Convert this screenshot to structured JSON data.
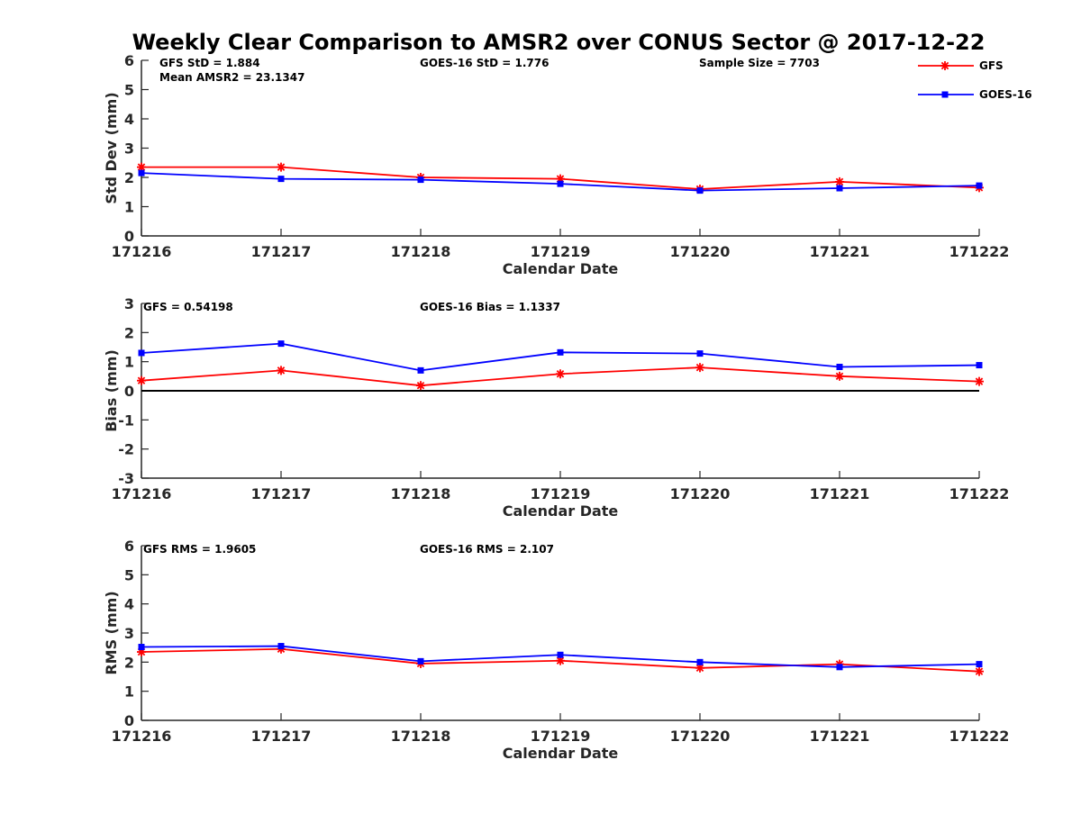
{
  "title": "Weekly Clear Comparison to AMSR2 over CONUS Sector @ 2017-12-22",
  "colors": {
    "gfs": "#ff0000",
    "goes": "#0000ff",
    "axis": "#262626",
    "zero_line": "#000000"
  },
  "legend": {
    "placement": "top-right",
    "items": [
      {
        "name": "GFS",
        "color": "#ff0000",
        "marker": "asterisk"
      },
      {
        "name": "GOES-16",
        "color": "#0000ff",
        "marker": "square"
      }
    ]
  },
  "chart_data": [
    {
      "type": "line",
      "xlabel": "Calendar Date",
      "ylabel": "Std Dev (mm)",
      "ylim": [
        0,
        6
      ],
      "yticks": [
        "0",
        "1",
        "2",
        "3",
        "4",
        "5",
        "6"
      ],
      "categories": [
        "171216",
        "171217",
        "171218",
        "171219",
        "171220",
        "171221",
        "171222"
      ],
      "series": [
        {
          "name": "GFS",
          "values": [
            2.35,
            2.35,
            2.0,
            1.95,
            1.6,
            1.85,
            1.65
          ]
        },
        {
          "name": "GOES-16",
          "values": [
            2.15,
            1.95,
            1.92,
            1.78,
            1.55,
            1.63,
            1.72
          ]
        }
      ],
      "annotations": [
        "GFS StD = 1.884",
        "Mean AMSR2 = 23.1347",
        "GOES-16 StD = 1.776",
        "Sample Size = 7703"
      ]
    },
    {
      "type": "line",
      "xlabel": "Calendar Date",
      "ylabel": "Bias (mm)",
      "ylim": [
        -3,
        3
      ],
      "yticks": [
        "-3",
        "-2",
        "-1",
        "0",
        "1",
        "2",
        "3"
      ],
      "zero_line": true,
      "categories": [
        "171216",
        "171217",
        "171218",
        "171219",
        "171220",
        "171221",
        "171222"
      ],
      "series": [
        {
          "name": "GFS",
          "values": [
            0.35,
            0.7,
            0.18,
            0.58,
            0.8,
            0.5,
            0.32
          ]
        },
        {
          "name": "GOES-16",
          "values": [
            1.3,
            1.62,
            0.7,
            1.32,
            1.28,
            0.82,
            0.88
          ]
        }
      ],
      "annotations": [
        "GFS = 0.54198",
        "GOES-16 Bias  = 1.1337"
      ]
    },
    {
      "type": "line",
      "xlabel": "Calendar Date",
      "ylabel": "RMS (mm)",
      "ylim": [
        0,
        6
      ],
      "yticks": [
        "0",
        "1",
        "2",
        "3",
        "4",
        "5",
        "6"
      ],
      "categories": [
        "171216",
        "171217",
        "171218",
        "171219",
        "171220",
        "171221",
        "171222"
      ],
      "series": [
        {
          "name": "GFS",
          "values": [
            2.35,
            2.45,
            1.95,
            2.05,
            1.8,
            1.93,
            1.68
          ]
        },
        {
          "name": "GOES-16",
          "values": [
            2.52,
            2.55,
            2.03,
            2.25,
            2.0,
            1.83,
            1.93
          ]
        }
      ],
      "annotations": [
        "GFS RMS = 1.9605",
        "GOES-16 RMS = 2.107"
      ]
    }
  ]
}
